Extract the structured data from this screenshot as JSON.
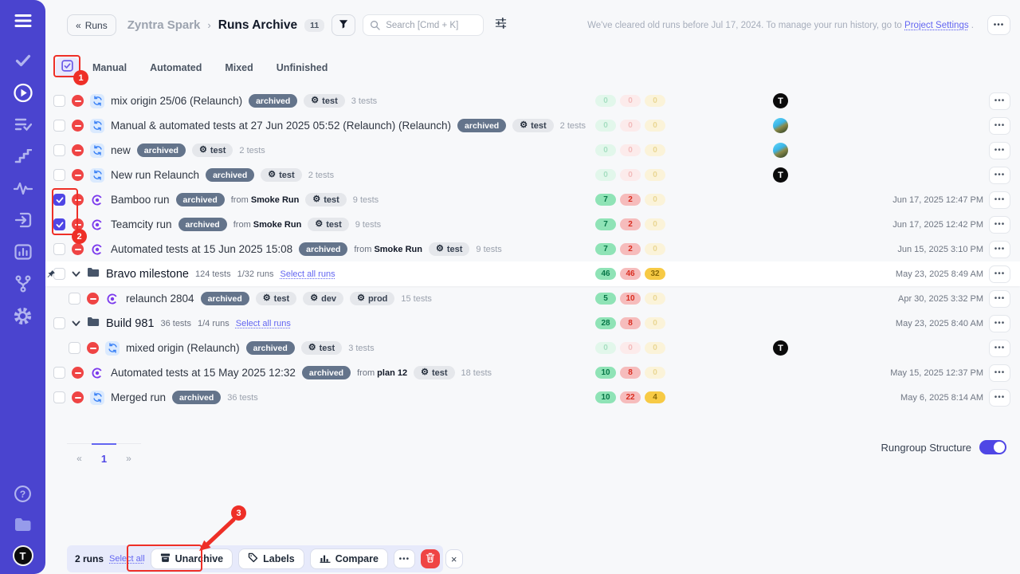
{
  "colors": {
    "sidebar": "#4a44cf",
    "accent": "#6366f1",
    "checkbox_checked": "#4f46e5",
    "danger": "#ef4444",
    "annotation": "#ee2f27",
    "pass_pill": "#8fe3b6",
    "fail_pill": "#f6bcbc",
    "skip_pill": "#f7ca45"
  },
  "sidebar": {
    "icons": [
      "menu",
      "check",
      "play-circle",
      "list-check",
      "steps",
      "activity",
      "import",
      "bar-chart",
      "branch",
      "gear"
    ],
    "bottom_icons": [
      "help",
      "folder",
      "user-avatar"
    ],
    "avatar_letter": "T"
  },
  "header": {
    "back_chevrons": "«",
    "back_label": "Runs",
    "project": "Zyntra Spark",
    "breadcrumb_sep": "›",
    "page_title": "Runs Archive",
    "count_badge": "11",
    "search_placeholder": "Search [Cmd + K]",
    "notice_text": "We've cleared old runs before Jul 17, 2024. To manage your run history, go to",
    "notice_link": "Project Settings",
    "notice_suffix": ".",
    "more_dots": "•••"
  },
  "tabs": {
    "items": [
      "Manual",
      "Automated",
      "Mixed",
      "Unfinished"
    ]
  },
  "shared": {
    "archived_label": "archived",
    "from_label": "from",
    "menu_dots": "•••",
    "avatar_letter": "T"
  },
  "rows": [
    {
      "kind": "run",
      "title": "mix origin 25/06 (Relaunch)",
      "origin": "mixed",
      "checked": false,
      "archived": true,
      "from": null,
      "tags": [
        "test"
      ],
      "tests": "3 tests",
      "stats": [
        "0",
        "0",
        "0"
      ],
      "avatar": "logo",
      "date": null,
      "indent": false
    },
    {
      "kind": "run",
      "title": "Manual & automated tests at 27 Jun 2025 05:52 (Relaunch) (Relaunch)",
      "origin": "mixed",
      "checked": false,
      "archived": true,
      "from": null,
      "tags": [
        "test"
      ],
      "tests": "2 tests",
      "stats": [
        "0",
        "0",
        "0"
      ],
      "avatar": "photo",
      "date": null,
      "indent": false
    },
    {
      "kind": "run",
      "title": "new",
      "origin": "mixed",
      "checked": false,
      "archived": true,
      "from": null,
      "tags": [
        "test"
      ],
      "tests": "2 tests",
      "stats": [
        "0",
        "0",
        "0"
      ],
      "avatar": "photo",
      "date": null,
      "indent": false
    },
    {
      "kind": "run",
      "title": "New run Relaunch",
      "origin": "mixed",
      "checked": false,
      "archived": true,
      "from": null,
      "tags": [
        "test"
      ],
      "tests": "2 tests",
      "stats": [
        "0",
        "0",
        "0"
      ],
      "avatar": "logo",
      "date": null,
      "indent": false
    },
    {
      "kind": "run",
      "title": "Bamboo run",
      "origin": "automated",
      "checked": true,
      "archived": true,
      "from": "Smoke Run",
      "tags": [
        "test"
      ],
      "tests": "9 tests",
      "stats": [
        "7",
        "2",
        "0"
      ],
      "avatar": null,
      "date": "Jun 17, 2025 12:47 PM",
      "indent": false
    },
    {
      "kind": "run",
      "title": "Teamcity run",
      "origin": "automated",
      "checked": true,
      "archived": true,
      "from": "Smoke Run",
      "tags": [
        "test"
      ],
      "tests": "9 tests",
      "stats": [
        "7",
        "2",
        "0"
      ],
      "avatar": null,
      "date": "Jun 17, 2025 12:42 PM",
      "indent": false
    },
    {
      "kind": "run",
      "title": "Automated tests at 15 Jun 2025 15:08",
      "origin": "automated",
      "checked": false,
      "archived": true,
      "from": "Smoke Run",
      "tags": [
        "test"
      ],
      "tests": "9 tests",
      "stats": [
        "7",
        "2",
        "0"
      ],
      "avatar": null,
      "date": "Jun 15, 2025 3:10 PM",
      "indent": false
    },
    {
      "kind": "group",
      "title": "Bravo milestone",
      "tests": "124 tests",
      "runs": "1/32 runs",
      "select_link": "Select all runs",
      "stats": [
        "46",
        "46",
        "32"
      ],
      "date": "May 23, 2025 8:49 AM",
      "highlighted": true,
      "pinned": true
    },
    {
      "kind": "run",
      "title": "relaunch 2804",
      "origin": "automated",
      "checked": false,
      "archived": true,
      "from": null,
      "tags": [
        "test",
        "dev",
        "prod"
      ],
      "tests": "15 tests",
      "stats": [
        "5",
        "10",
        "0"
      ],
      "avatar": null,
      "date": "Apr 30, 2025 3:32 PM",
      "indent": true
    },
    {
      "kind": "group",
      "title": "Build 981",
      "tests": "36 tests",
      "runs": "1/4 runs",
      "select_link": "Select all runs",
      "stats": [
        "28",
        "8",
        "0"
      ],
      "date": "May 23, 2025 8:40 AM",
      "highlighted": false,
      "pinned": false
    },
    {
      "kind": "run",
      "title": "mixed origin (Relaunch)",
      "origin": "mixed",
      "checked": false,
      "archived": true,
      "from": null,
      "tags": [
        "test"
      ],
      "tests": "3 tests",
      "stats": [
        "0",
        "0",
        "0"
      ],
      "avatar": "logo",
      "date": null,
      "indent": true
    },
    {
      "kind": "run",
      "title": "Automated tests at 15 May 2025 12:32",
      "origin": "automated",
      "checked": false,
      "archived": true,
      "from": "plan 12",
      "tags": [
        "test"
      ],
      "tests": "18 tests",
      "stats": [
        "10",
        "8",
        "0"
      ],
      "avatar": null,
      "date": "May 15, 2025 12:37 PM",
      "indent": false
    },
    {
      "kind": "run",
      "title": "Merged run",
      "origin": "mixed",
      "checked": false,
      "archived": true,
      "from": null,
      "tags": [],
      "tests": "36 tests",
      "stats": [
        "10",
        "22",
        "4"
      ],
      "avatar": null,
      "date": "May 6, 2025 8:14 AM",
      "indent": false
    }
  ],
  "pagination": {
    "prev": "«",
    "page": "1",
    "next": "»"
  },
  "rungroup_toggle": {
    "label": "Rungroup Structure",
    "on": true
  },
  "footer_bar": {
    "count": "2 runs",
    "select_all": "Select all",
    "unarchive": "Unarchive",
    "labels": "Labels",
    "compare": "Compare",
    "more": "•••",
    "close": "×"
  },
  "annotations": {
    "step1": "1",
    "step2": "2",
    "step3": "3"
  }
}
